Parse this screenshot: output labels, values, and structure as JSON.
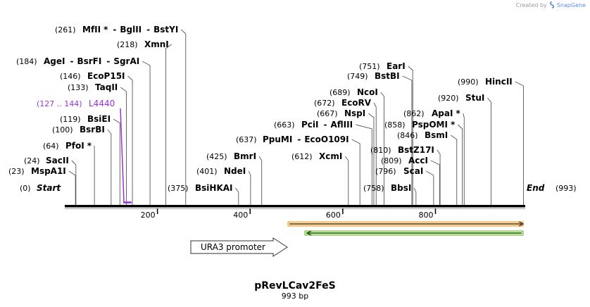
{
  "header": {
    "created_by": "Created by",
    "app": "SnapGene"
  },
  "map": {
    "name": "pRevLCav2FeS",
    "length_label": "993 bp",
    "length_bp": 993,
    "ticks": [
      200,
      400,
      600,
      800
    ],
    "start_label": "Start",
    "start_pos": "(0)",
    "end_label": "End",
    "end_pos": "(993)"
  },
  "sites": [
    {
      "label_pos": "(261)",
      "name": "MfII",
      "star": true,
      "also": [
        "BglII",
        "BstYI"
      ],
      "bp": 261
    },
    {
      "label_pos": "(218)",
      "name": "XmnI",
      "bp": 218
    },
    {
      "label_pos": "(184)",
      "name": "AgeI",
      "also": [
        "BsrFI",
        "SgrAI"
      ],
      "bp": 184
    },
    {
      "label_pos": "(146)",
      "name": "EcoP15I",
      "bp": 146
    },
    {
      "label_pos": "(133)",
      "name": "TaqII",
      "bp": 133
    },
    {
      "label_pos": "(119)",
      "name": "BsiEI",
      "bp": 119
    },
    {
      "label_pos": "(100)",
      "name": "BsrBI",
      "bp": 100
    },
    {
      "label_pos": "(64)",
      "name": "PfoI",
      "star": true,
      "bp": 64
    },
    {
      "label_pos": "(24)",
      "name": "SacII",
      "bp": 24
    },
    {
      "label_pos": "(23)",
      "name": "MspA1I",
      "bp": 23
    },
    {
      "label_pos": "(375)",
      "name": "BsiHKAI",
      "bp": 375
    },
    {
      "label_pos": "(401)",
      "name": "NdeI",
      "bp": 401
    },
    {
      "label_pos": "(425)",
      "name": "BmrI",
      "bp": 425
    },
    {
      "label_pos": "(637)",
      "name": "PpuMI",
      "also": [
        "EcoO109I"
      ],
      "bp": 637
    },
    {
      "label_pos": "(612)",
      "name": "XcmI",
      "bp": 612
    },
    {
      "label_pos": "(663)",
      "name": "PciI",
      "also": [
        "AflIII"
      ],
      "bp": 663
    },
    {
      "label_pos": "(667)",
      "name": "NspI",
      "bp": 667
    },
    {
      "label_pos": "(672)",
      "name": "EcoRV",
      "bp": 672
    },
    {
      "label_pos": "(689)",
      "name": "NcoI",
      "bp": 689
    },
    {
      "label_pos": "(749)",
      "name": "BstBI",
      "bp": 749
    },
    {
      "label_pos": "(751)",
      "name": "EarI",
      "bp": 751
    },
    {
      "label_pos": "(758)",
      "name": "BbsI",
      "bp": 758
    },
    {
      "label_pos": "(796)",
      "name": "ScaI",
      "bp": 796
    },
    {
      "label_pos": "(809)",
      "name": "AccI",
      "bp": 809
    },
    {
      "label_pos": "(810)",
      "name": "BstZ17I",
      "bp": 810
    },
    {
      "label_pos": "(846)",
      "name": "BsmI",
      "bp": 846
    },
    {
      "label_pos": "(858)",
      "name": "PspOMI",
      "star": true,
      "bp": 858
    },
    {
      "label_pos": "(862)",
      "name": "ApaI",
      "star": true,
      "bp": 862
    },
    {
      "label_pos": "(920)",
      "name": "StuI",
      "bp": 920
    },
    {
      "label_pos": "(990)",
      "name": "HincII",
      "bp": 990
    }
  ],
  "primer": {
    "label_pos": "(127 .. 144)",
    "name": "L4440",
    "start": 127,
    "end": 144,
    "color": "#9b30d9"
  },
  "features": [
    {
      "name": "URA3 promoter",
      "start": 273,
      "end": 482,
      "direction": "forward",
      "color": "#ffffff"
    },
    {
      "start": 482,
      "end": 993,
      "direction": "forward",
      "color": "#e89a2c"
    },
    {
      "start": 520,
      "end": 993,
      "direction": "reverse",
      "color": "#6ab534"
    }
  ]
}
